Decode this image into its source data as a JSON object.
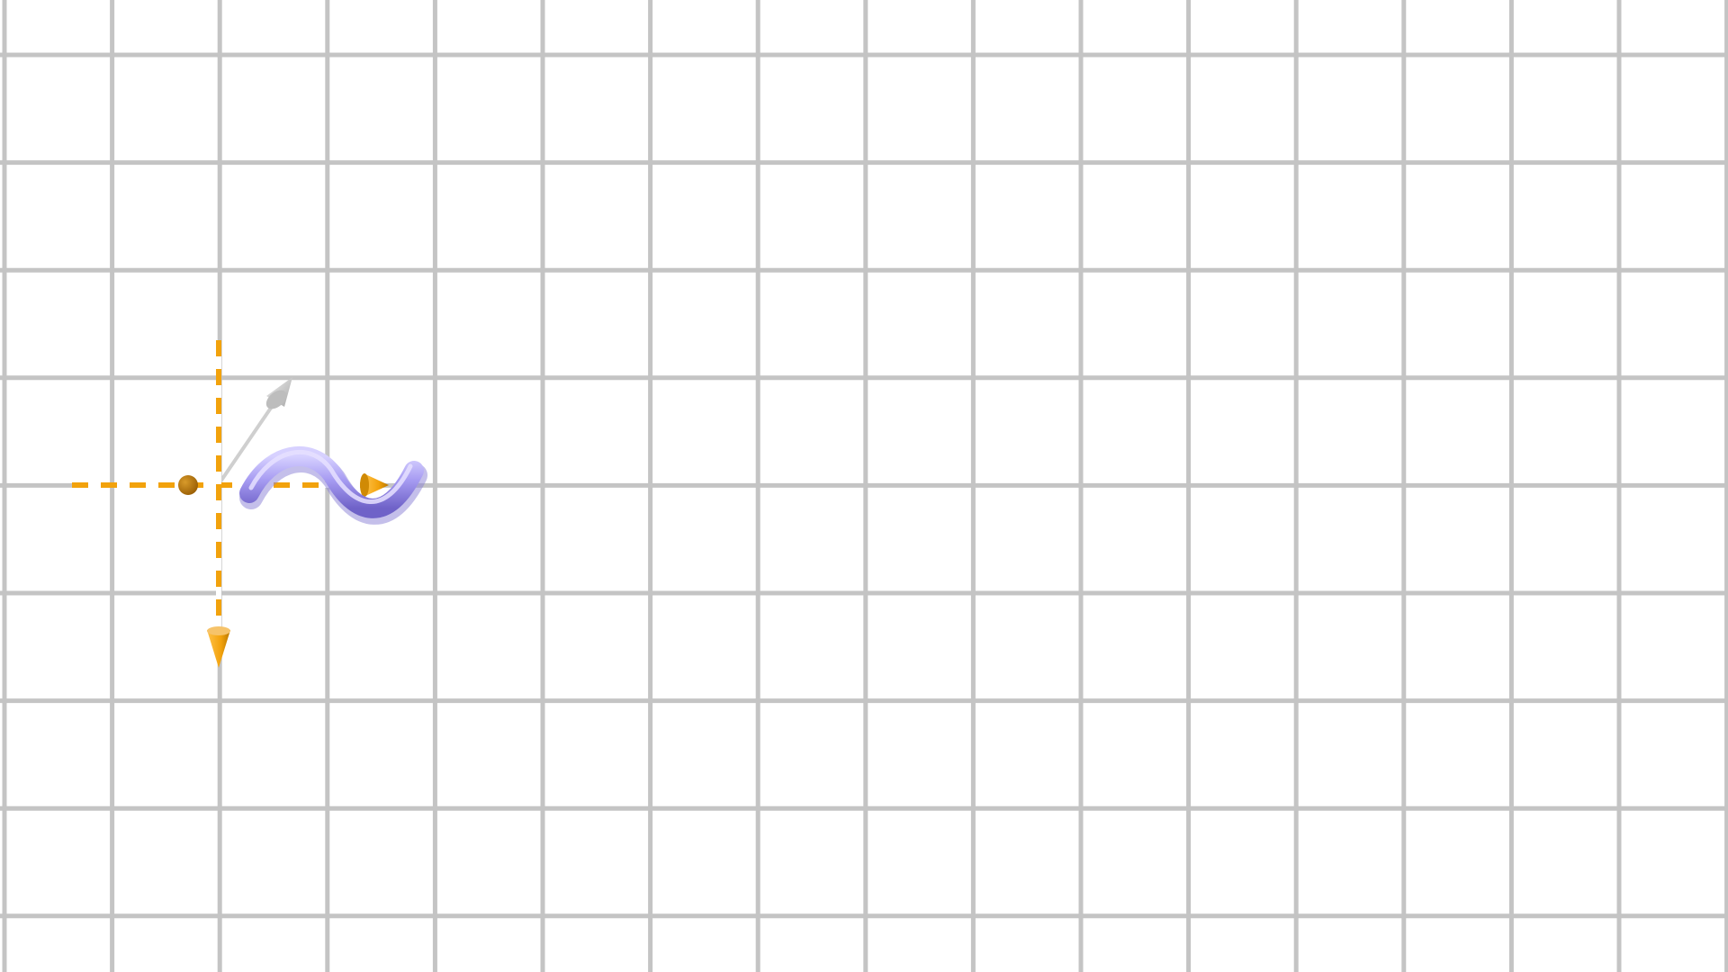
{
  "scene": {
    "background_color": "#ffffff",
    "grid": {
      "visible": true,
      "color": "#c4c4c4"
    },
    "axes": {
      "x": {
        "visible": true,
        "colors": [
          "#f2a20c",
          "#ffffff"
        ],
        "arrowhead": true
      },
      "y": {
        "visible": true,
        "colors": [
          "#f2a20c",
          "#ffffff"
        ],
        "arrowhead": true
      },
      "z": {
        "visible": true,
        "color": "#cfcfcf",
        "arrowhead": true
      }
    },
    "origin_point": {
      "color": "#9a5f05"
    },
    "object": {
      "shape": "sine-wave-tube",
      "color": "#a79cf2",
      "highlight_color": "#d7d1ff",
      "shadow_color": "#6f62c8"
    }
  }
}
